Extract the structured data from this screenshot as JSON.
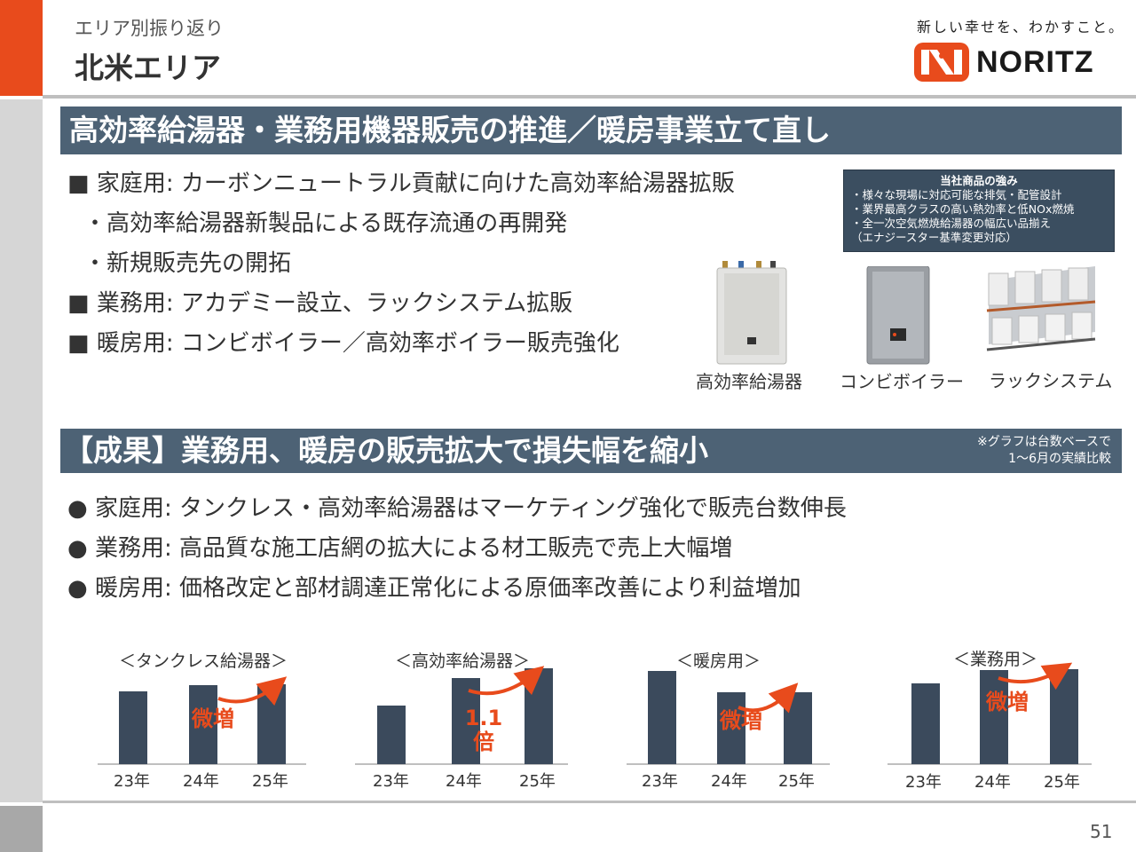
{
  "header": {
    "subtitle": "エリア別振り返り",
    "title": "北米エリア",
    "tagline": "新しい幸せを、わかすこと。",
    "logo_text": "NORITZ",
    "brand_color": "#e84b1c"
  },
  "section1": {
    "heading": "高効率給湯器・業務用機器販売の推進／暖房事業立て直し",
    "lines": [
      "■ 家庭用: カーボンニュートラル貢献に向けた高効率給湯器拡販",
      "・高効率給湯器新製品による既存流通の再開発",
      "・新規販売先の開拓",
      "■ 業務用: アカデミー設立、ラックシステム拡販",
      "■ 暖房用: コンビボイラー／高効率ボイラー販売強化"
    ],
    "strengths": {
      "title": "当社商品の強み",
      "items": [
        "・様々な現場に対応可能な排気・配管設計",
        "・業界最高クラスの高い熱効率と低NOx燃焼",
        "・全一次空気燃焼給湯器の幅広い品揃え",
        "（エナジースター基準変更対応）"
      ]
    },
    "products": [
      "高効率給湯器",
      "コンビボイラー",
      "ラックシステム"
    ]
  },
  "section2": {
    "heading": "【成果】業務用、暖房の販売拡大で損失幅を縮小",
    "note_line1": "※グラフは台数ベースで",
    "note_line2": "1～6月の実績比較",
    "bullets": [
      "● 家庭用: タンクレス・高効率給湯器はマーケティング強化で販売台数伸長",
      "● 業務用: 高品質な施工店網の拡大による材工販売で売上大幅増",
      "● 暖房用: 価格改定と部材調達正常化による原価率改善により利益増加"
    ]
  },
  "chart_data": [
    {
      "type": "bar",
      "title": "＜タンクレス給湯器＞",
      "categories": [
        "23年",
        "24年",
        "25年"
      ],
      "values": [
        82,
        89,
        90
      ],
      "annotation": "微増",
      "bar_color": "#3b4a5c"
    },
    {
      "type": "bar",
      "title": "＜高効率給湯器＞",
      "categories": [
        "23年",
        "24年",
        "25年"
      ],
      "values": [
        66,
        97,
        108
      ],
      "annotation": "1.1\n倍",
      "bar_color": "#3b4a5c"
    },
    {
      "type": "bar",
      "title": "＜暖房用＞",
      "categories": [
        "23年",
        "24年",
        "25年"
      ],
      "values": [
        105,
        81,
        81
      ],
      "annotation": "微増",
      "bar_color": "#3b4a5c"
    },
    {
      "type": "bar",
      "title": "＜業務用＞",
      "categories": [
        "23年",
        "24年",
        "25年"
      ],
      "values": [
        91,
        106,
        107
      ],
      "annotation": "微増",
      "bar_color": "#3b4a5c"
    }
  ],
  "page_number": "51"
}
